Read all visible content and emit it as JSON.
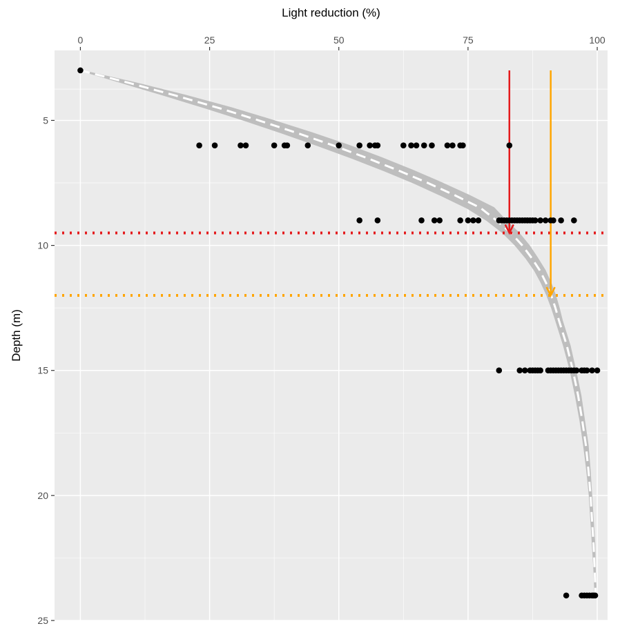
{
  "chart_data": {
    "type": "scatter",
    "title": "",
    "xlabel": "Light reduction (%)",
    "ylabel": "Depth (m)",
    "x_axis_position": "top",
    "y_axis_reversed": true,
    "xlim": [
      -5,
      102
    ],
    "ylim": [
      2.2,
      25
    ],
    "xticks": [
      0,
      25,
      50,
      75,
      100
    ],
    "yticks": [
      5,
      10,
      15,
      20,
      25
    ],
    "grid": true,
    "panel_background": "#ebebeb",
    "grid_color": "#ffffff",
    "point_color": "#000000",
    "points": [
      {
        "depth": 3,
        "values": [
          0
        ]
      },
      {
        "depth": 6,
        "values": [
          23,
          26,
          31,
          32,
          37.5,
          39.5,
          40,
          44,
          50,
          54,
          56,
          57,
          57.5,
          62.5,
          64,
          65,
          66.5,
          68,
          71,
          72,
          73.5,
          74,
          83
        ]
      },
      {
        "depth": 9,
        "values": [
          54,
          57.5,
          66,
          68.5,
          69.5,
          73.5,
          75,
          76,
          77,
          81,
          81.5,
          82,
          82.5,
          83,
          83.5,
          84,
          84.5,
          85,
          85.5,
          86,
          86.5,
          87,
          87.5,
          88,
          89,
          90,
          91,
          91.5,
          93,
          95.5
        ]
      },
      {
        "depth": 15,
        "values": [
          81,
          85,
          86,
          87,
          87.5,
          88,
          88.5,
          89,
          90.5,
          91,
          91.5,
          92,
          92.5,
          93,
          93.5,
          94,
          94.5,
          95,
          95.5,
          96,
          97,
          97.5,
          98,
          99,
          100
        ]
      },
      {
        "depth": 24,
        "values": [
          94,
          97,
          97.5,
          98,
          98.5,
          99,
          99.3,
          99.6
        ]
      }
    ],
    "fitted_curve": {
      "style": "white dashed line over grey confidence ribbon",
      "line_color": "#ffffff",
      "ribbon_color": "#bebebe",
      "depth": [
        3,
        3.5,
        4,
        4.5,
        5,
        5.5,
        6,
        6.5,
        7,
        7.5,
        8,
        8.5,
        9,
        9.5,
        10,
        10.5,
        11,
        11.5,
        12,
        12.5,
        13,
        14,
        15,
        16,
        17,
        18,
        19,
        20,
        21,
        22,
        23,
        24
      ],
      "fit": [
        0,
        9.4,
        18.3,
        26.7,
        34.5,
        41.9,
        48.9,
        55.4,
        61.5,
        67.2,
        72.5,
        77.4,
        80.5,
        83.3,
        85.5,
        87.3,
        88.9,
        90.1,
        91.1,
        91.9,
        92.6,
        94.1,
        95.3,
        96.3,
        97.1,
        97.8,
        98.3,
        98.7,
        99.0,
        99.3,
        99.5,
        99.7
      ],
      "lower": [
        0,
        8.2,
        16.3,
        24.2,
        31.8,
        39.0,
        45.9,
        52.5,
        58.7,
        64.5,
        69.8,
        74.8,
        78.7,
        81.8,
        84.2,
        86.2,
        87.9,
        89.2,
        90.3,
        91.2,
        92.0,
        93.5,
        94.8,
        95.8,
        96.7,
        97.4,
        98.0,
        98.5,
        98.8,
        99.1,
        99.4,
        99.6
      ],
      "upper": [
        0,
        10.6,
        20.3,
        29.2,
        37.2,
        44.8,
        51.9,
        58.3,
        64.3,
        69.9,
        75.2,
        80.0,
        82.3,
        84.8,
        86.8,
        88.4,
        89.9,
        91.0,
        91.9,
        92.6,
        93.2,
        94.7,
        95.8,
        96.8,
        97.5,
        98.2,
        98.6,
        98.9,
        99.2,
        99.5,
        99.6,
        99.8
      ]
    },
    "reference_lines": [
      {
        "depth": 9.5,
        "color": "#e41a1c",
        "style": "dotted"
      },
      {
        "depth": 12,
        "color": "#ffa500",
        "style": "dotted"
      }
    ],
    "arrows": [
      {
        "x": 83,
        "from_depth": 3,
        "to_depth": 9.5,
        "color": "#e41a1c"
      },
      {
        "x": 91,
        "from_depth": 3,
        "to_depth": 12,
        "color": "#ffa500"
      }
    ]
  }
}
